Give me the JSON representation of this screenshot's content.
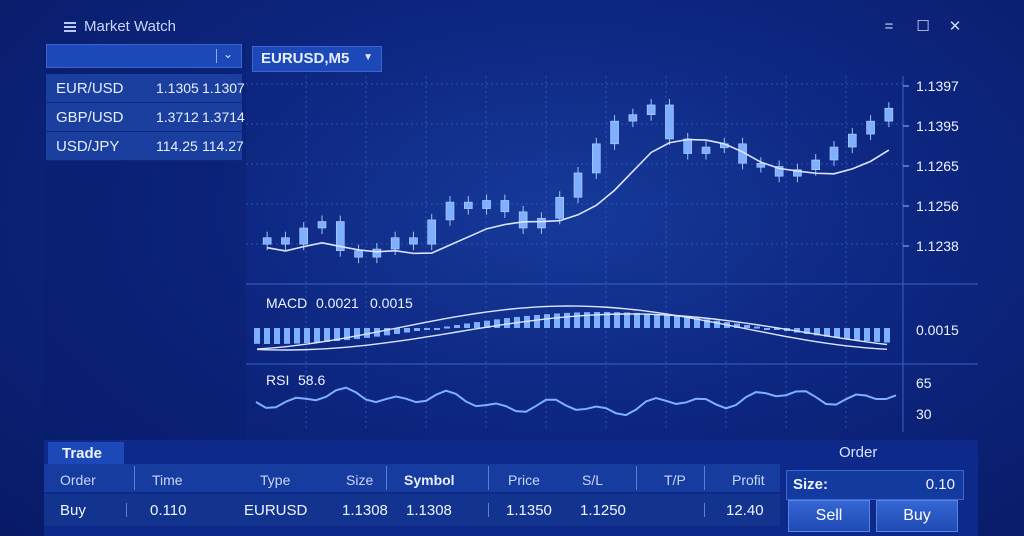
{
  "window": {
    "title": "Market Watch",
    "minimize_glyph": "=",
    "maximize_glyph": "☐",
    "close_glyph": "✕"
  },
  "market_watch": {
    "quotes": [
      {
        "symbol": "EUR/USD",
        "bid": "1.1305",
        "ask": "1.1307"
      },
      {
        "symbol": "GBP/USD",
        "bid": "1.3712",
        "ask": "1.3714"
      },
      {
        "symbol": "USD/JPY",
        "bid": "114.25",
        "ask": "114.27"
      }
    ]
  },
  "chart": {
    "tab_label": "EURUSD,M5",
    "price_ticks": [
      "1.1397",
      "1.1395",
      "1.1265",
      "1.1256",
      "1.1238"
    ],
    "macd_label": "MACD",
    "macd_value1": "0.0021",
    "macd_value2": "0.0015",
    "macd_axis": "0.0015",
    "rsi_label": "RSI",
    "rsi_value": "58.6",
    "rsi_ticks": [
      "65",
      "30"
    ]
  },
  "chart_data": {
    "type": "line",
    "title": "",
    "series": [
      {
        "values": [
          1.124,
          1.1236,
          1.1246,
          1.125,
          1.1232,
          1.1228,
          1.1233,
          1.124,
          1.1236,
          1.1251,
          1.1262,
          1.1258,
          1.1263,
          1.1256,
          1.1246,
          1.1252,
          1.1265,
          1.128,
          1.1298,
          1.1312,
          1.1316,
          1.1322,
          1.1301,
          1.1292,
          1.1296,
          1.1298,
          1.1286,
          1.1284,
          1.1278,
          1.1282,
          1.1288,
          1.1296,
          1.1304,
          1.1312,
          1.132
        ]
      }
    ],
    "ylim": [
      1.1225,
      1.133
    ],
    "grid": true,
    "legend": "none"
  },
  "trade": {
    "tab_label": "Trade",
    "columns": [
      "Order",
      "Time",
      "Type",
      "Size",
      "Symbol",
      "Price",
      "S/L",
      "T/P",
      "Profit"
    ],
    "row": {
      "order": "Buy",
      "time": "0.110",
      "type": "EURUSD",
      "size": "1.1308",
      "symbol": "1.1308",
      "price": "1.1350",
      "sl": "1.1250",
      "tp": "",
      "profit": "12.40"
    }
  },
  "order": {
    "title": "Order",
    "size_label": "Size:",
    "size_value": "0.10",
    "sell_label": "Sell",
    "buy_label": "Buy"
  },
  "colors": {
    "accent": "#1d49b8",
    "candle": "#7fb0ff",
    "line": "#dbe6ff",
    "background": "#0d2680"
  }
}
